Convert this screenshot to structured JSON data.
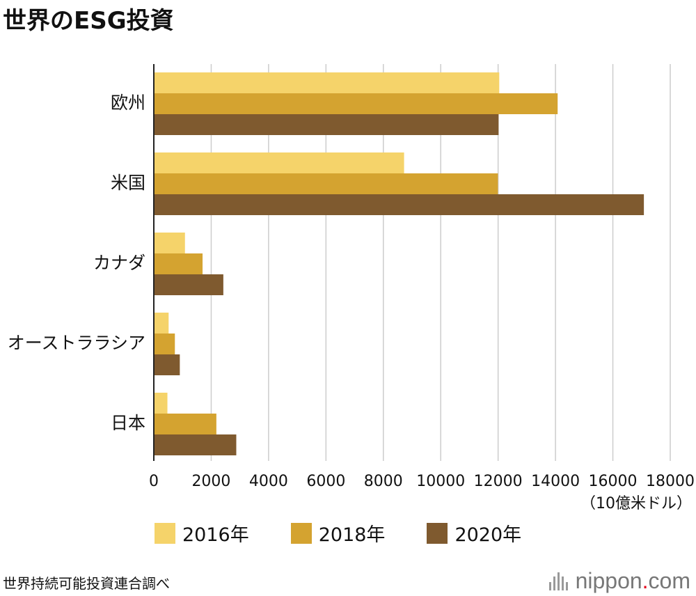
{
  "title": "世界のESG投資",
  "source": "世界持続可能投資連合調べ",
  "logo": {
    "name": "nippon",
    "dot": ".",
    "tld": "com"
  },
  "colors": {
    "s2016": "#f5d36a",
    "s2018": "#d4a330",
    "s2020": "#7f5a2f",
    "grid": "#cccccc",
    "axis": "#222222"
  },
  "chart_data": {
    "type": "bar",
    "orientation": "horizontal",
    "categories": [
      "欧州",
      "米国",
      "カナダ",
      "オーストララシア",
      "日本"
    ],
    "series": [
      {
        "name": "2016年",
        "color": "#f5d36a",
        "values": [
          12040,
          8723,
          1086,
          516,
          474
        ]
      },
      {
        "name": "2018年",
        "color": "#d4a330",
        "values": [
          14075,
          11995,
          1699,
          734,
          2180
        ]
      },
      {
        "name": "2020年",
        "color": "#7f5a2f",
        "values": [
          12017,
          17081,
          2423,
          906,
          2874
        ]
      }
    ],
    "xlim": [
      0,
      18000
    ],
    "xticks": [
      "0",
      "2000",
      "4000",
      "6000",
      "8000",
      "10000",
      "12000",
      "14000",
      "16000",
      "18000"
    ],
    "xunit": "（10億米ドル）",
    "grid": true,
    "legend_position": "bottom"
  }
}
